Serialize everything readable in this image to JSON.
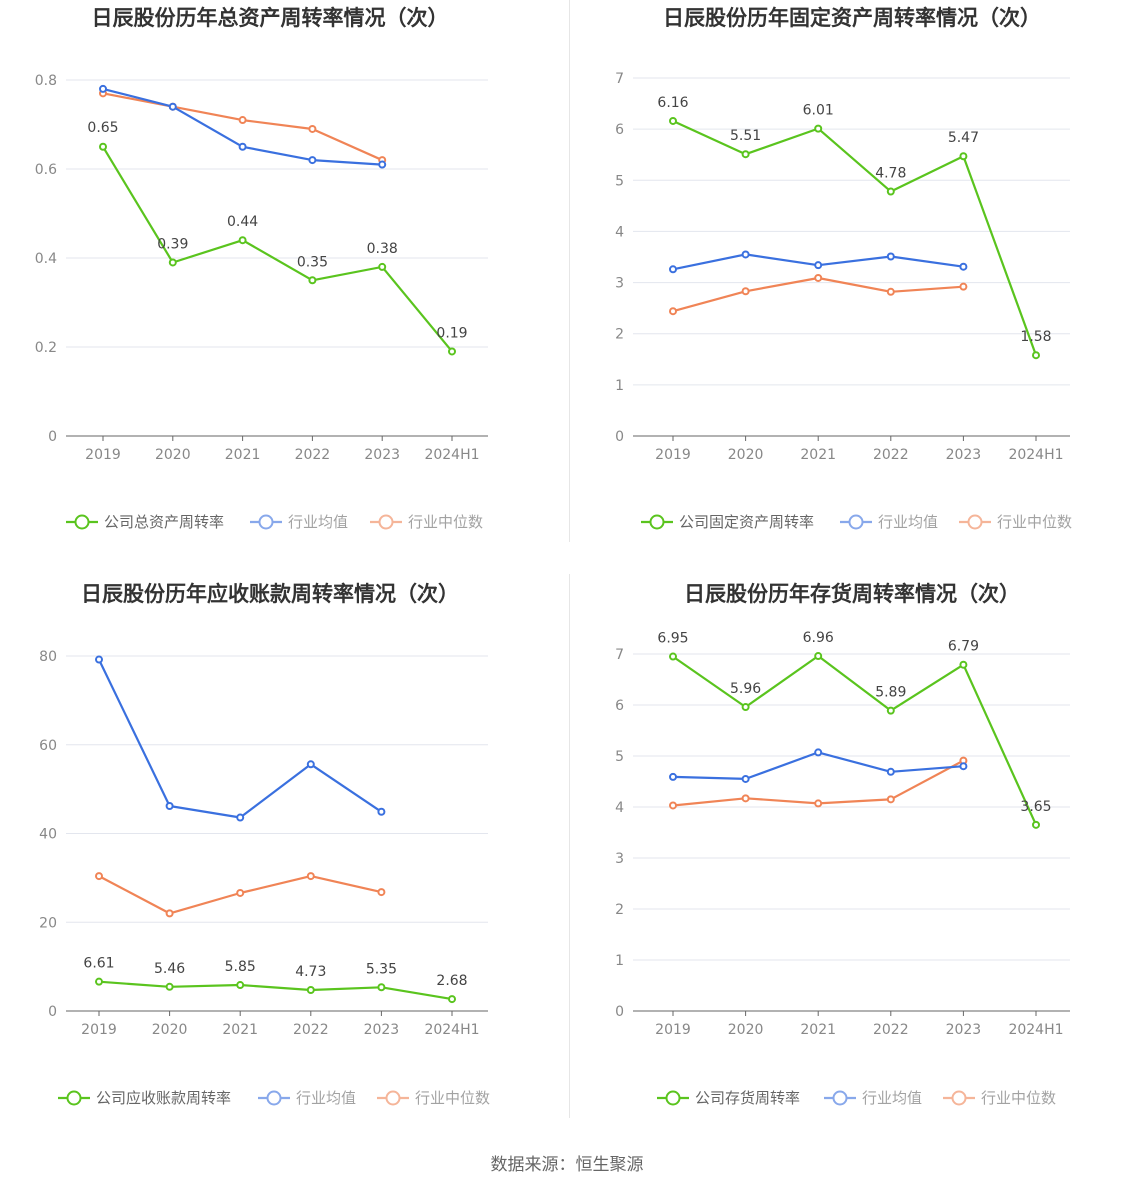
{
  "colors": {
    "company": "#5ac41e",
    "avg": "#3a70df",
    "median": "#f08456",
    "grid": "#e3e6ee",
    "axis": "#666666"
  },
  "source": "数据来源：恒生聚源",
  "chart_data": [
    {
      "type": "line",
      "title": "日辰股份历年总资产周转率情况（次）",
      "categories": [
        "2019",
        "2020",
        "2021",
        "2022",
        "2023",
        "2024H1"
      ],
      "ylim": [
        0,
        0.8
      ],
      "yticks": [
        0,
        0.2,
        0.4,
        0.6,
        0.8
      ],
      "ytick_labels": [
        "0",
        "0.2",
        "0.4",
        "0.6",
        "0.8"
      ],
      "series": [
        {
          "name": "公司总资产周转率",
          "role": "company",
          "values": [
            0.65,
            0.39,
            0.44,
            0.35,
            0.38,
            0.19
          ],
          "labels": [
            "0.65",
            "0.39",
            "0.44",
            "0.35",
            "0.38",
            "0.19"
          ]
        },
        {
          "name": "行业均值",
          "role": "avg",
          "values": [
            0.78,
            0.74,
            0.65,
            0.62,
            0.61,
            null
          ]
        },
        {
          "name": "行业中位数",
          "role": "median",
          "values": [
            0.77,
            0.74,
            0.71,
            0.69,
            0.62,
            null
          ]
        }
      ]
    },
    {
      "type": "line",
      "title": "日辰股份历年固定资产周转率情况（次）",
      "categories": [
        "2019",
        "2020",
        "2021",
        "2022",
        "2023",
        "2024H1"
      ],
      "ylim": [
        0,
        7
      ],
      "yticks": [
        0,
        1,
        2,
        3,
        4,
        5,
        6,
        7
      ],
      "ytick_labels": [
        "0",
        "1",
        "2",
        "3",
        "4",
        "5",
        "6",
        "7"
      ],
      "series": [
        {
          "name": "公司固定资产周转率",
          "role": "company",
          "values": [
            6.16,
            5.51,
            6.01,
            4.78,
            5.47,
            1.58
          ],
          "labels": [
            "6.16",
            "5.51",
            "6.01",
            "4.78",
            "5.47",
            "1.58"
          ]
        },
        {
          "name": "行业均值",
          "role": "avg",
          "values": [
            3.26,
            3.55,
            3.34,
            3.51,
            3.31,
            null
          ]
        },
        {
          "name": "行业中位数",
          "role": "median",
          "values": [
            2.44,
            2.83,
            3.09,
            2.82,
            2.92,
            null
          ]
        }
      ]
    },
    {
      "type": "line",
      "title": "日辰股份历年应收账款周转率情况（次）",
      "categories": [
        "2019",
        "2020",
        "2021",
        "2022",
        "2023",
        "2024H1"
      ],
      "ylim": [
        0,
        80
      ],
      "yticks": [
        0,
        20,
        40,
        60,
        80
      ],
      "ytick_labels": [
        "0",
        "20",
        "40",
        "60",
        "80"
      ],
      "series": [
        {
          "name": "公司应收账款周转率",
          "role": "company",
          "values": [
            6.61,
            5.46,
            5.85,
            4.73,
            5.35,
            2.68
          ],
          "labels": [
            "6.61",
            "5.46",
            "5.85",
            "4.73",
            "5.35",
            "2.68"
          ]
        },
        {
          "name": "行业均值",
          "role": "avg",
          "values": [
            79.2,
            46.2,
            43.6,
            55.6,
            44.9,
            null
          ]
        },
        {
          "name": "行业中位数",
          "role": "median",
          "values": [
            30.4,
            22.0,
            26.6,
            30.4,
            26.8,
            null
          ]
        }
      ]
    },
    {
      "type": "line",
      "title": "日辰股份历年存货周转率情况（次）",
      "categories": [
        "2019",
        "2020",
        "2021",
        "2022",
        "2023",
        "2024H1"
      ],
      "ylim": [
        0,
        7
      ],
      "yticks": [
        0,
        1,
        2,
        3,
        4,
        5,
        6,
        7
      ],
      "ytick_labels": [
        "0",
        "1",
        "2",
        "3",
        "4",
        "5",
        "6",
        "7"
      ],
      "series": [
        {
          "name": "公司存货周转率",
          "role": "company",
          "values": [
            6.95,
            5.96,
            6.96,
            5.89,
            6.79,
            3.65
          ],
          "labels": [
            "6.95",
            "5.96",
            "6.96",
            "5.89",
            "6.79",
            "3.65"
          ]
        },
        {
          "name": "行业均值",
          "role": "avg",
          "values": [
            4.59,
            4.55,
            5.07,
            4.69,
            4.8,
            null
          ]
        },
        {
          "name": "行业中位数",
          "role": "median",
          "values": [
            4.03,
            4.17,
            4.07,
            4.15,
            4.91,
            null
          ]
        }
      ]
    }
  ]
}
